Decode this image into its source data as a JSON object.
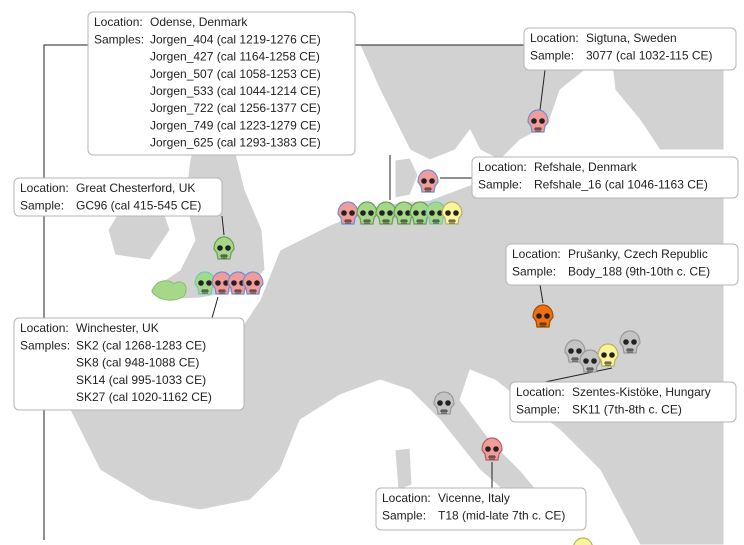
{
  "callouts": [
    {
      "location_label": "Location:",
      "location": "Odense, Denmark",
      "samples_label": "Samples:",
      "samples": [
        "Jorgen_404 (cal 1219-1276 CE)",
        "Jorgen_427 (cal 1164-1258 CE)",
        "Jorgen_507 (cal 1058-1253 CE)",
        "Jorgen_533 (cal 1044-1214 CE)",
        "Jorgen_722 (cal 1256-1377 CE)",
        "Jorgen_749 (cal 1223-1279 CE)",
        "Jorgen_625 (cal 1293-1383 CE)"
      ]
    },
    {
      "location_label": "Location:",
      "location": "Sigtuna, Sweden",
      "samples_label": "Sample:",
      "samples": [
        "3077 (cal 1032-115 CE)"
      ]
    },
    {
      "location_label": "Location:",
      "location": "Refshale, Denmark",
      "samples_label": "Sample:",
      "samples": [
        "Refshale_16 (cal 1046-1163 CE)"
      ]
    },
    {
      "location_label": "Location:",
      "location": "Great Chesterford, UK",
      "samples_label": "Sample:",
      "samples": [
        "GC96 (cal 415-545 CE)"
      ]
    },
    {
      "location_label": "Location:",
      "location": "Prušanky, Czech Republic",
      "samples_label": "Sample:",
      "samples": [
        "Body_188 (9th-10th c. CE)"
      ]
    },
    {
      "location_label": "Location:",
      "location": "Winchester, UK",
      "samples_label": "Samples:",
      "samples": [
        "SK2 (cal 1268-1283 CE)",
        "SK8 (cal 948-1088 CE)",
        "SK14 (cal 995-1033 CE)",
        "SK27 (cal 1020-1162 CE)"
      ]
    },
    {
      "location_label": "Location:",
      "location": "Szentes-Kistöke, Hungary",
      "samples_label": "Sample:",
      "samples": [
        "SK11 (7th-8th c. CE)"
      ]
    },
    {
      "location_label": "Location:",
      "location": "Vicenne, Italy",
      "samples_label": "Sample:",
      "samples": [
        "T18 (mid-late 7th c. CE)"
      ]
    }
  ]
}
